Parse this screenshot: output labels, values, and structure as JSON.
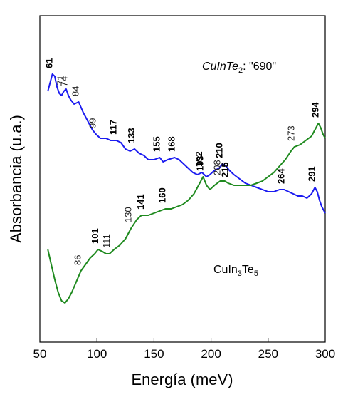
{
  "chart_data": {
    "type": "line",
    "xlabel": "Energía (meV)",
    "ylabel": "Absorbancia (u.a.)",
    "xlim": [
      50,
      300
    ],
    "x_ticks": [
      "50",
      "100",
      "150",
      "200",
      "250",
      "300"
    ],
    "y_ticks": false,
    "grid": false,
    "series": [
      {
        "name": "CuInTe₂: \"690\"",
        "label_parts": {
          "pre": "CuInTe",
          "sub": "2",
          "post": ": \"690\""
        },
        "color": "#1c1cf0",
        "peaks": [
          {
            "x": 61,
            "label": "61",
            "bold": true
          },
          {
            "x": 71,
            "label": "71",
            "bold": false
          },
          {
            "x": 74,
            "label": "74",
            "bold": false
          },
          {
            "x": 84,
            "label": "84",
            "bold": false
          },
          {
            "x": 99,
            "label": "99",
            "bold": false
          },
          {
            "x": 117,
            "label": "117",
            "bold": true
          },
          {
            "x": 133,
            "label": "133",
            "bold": true
          },
          {
            "x": 155,
            "label": "155",
            "bold": true
          },
          {
            "x": 168,
            "label": "168",
            "bold": true
          },
          {
            "x": 192,
            "label": "192",
            "bold": true
          },
          {
            "x": 210,
            "label": "210",
            "bold": true
          },
          {
            "x": 264,
            "label": "264",
            "bold": true
          },
          {
            "x": 291,
            "label": "291",
            "bold": true
          }
        ],
        "x": [
          57,
          59,
          61,
          63,
          65,
          67,
          69,
          71,
          73,
          75,
          77,
          80,
          84,
          88,
          92,
          96,
          99,
          103,
          108,
          112,
          117,
          121,
          125,
          129,
          133,
          137,
          141,
          145,
          150,
          155,
          158,
          162,
          168,
          172,
          176,
          180,
          184,
          188,
          192,
          196,
          199,
          203,
          207,
          210,
          213,
          216,
          220,
          225,
          230,
          235,
          240,
          245,
          250,
          255,
          260,
          264,
          268,
          272,
          276,
          280,
          284,
          288,
          291,
          293,
          295,
          297,
          300
        ],
        "y": [
          84,
          88,
          92,
          91,
          86,
          83,
          82,
          84,
          85,
          82,
          80,
          78,
          79,
          74,
          70,
          66,
          64,
          62,
          62,
          61,
          61,
          60,
          57,
          56,
          57,
          55,
          54,
          52,
          52,
          53,
          51,
          52,
          53,
          52,
          50,
          48,
          46,
          45,
          46,
          44,
          45,
          47,
          48,
          50,
          49,
          47,
          45,
          43,
          41,
          40,
          39,
          38,
          37,
          37,
          38,
          38,
          37,
          36,
          35,
          35,
          34,
          36,
          39,
          37,
          33,
          30,
          27
        ]
      },
      {
        "name": "CuIn₃Te₅",
        "label_parts": {
          "pre": "CuIn",
          "sub": "3",
          "post": "Te",
          "sub2": "5"
        },
        "color": "#1f8a1f",
        "peaks": [
          {
            "x": 86,
            "label": "86",
            "bold": false
          },
          {
            "x": 101,
            "label": "101",
            "bold": true
          },
          {
            "x": 111,
            "label": "111",
            "bold": false
          },
          {
            "x": 130,
            "label": "130",
            "bold": false
          },
          {
            "x": 141,
            "label": "141",
            "bold": true
          },
          {
            "x": 160,
            "label": "160",
            "bold": true
          },
          {
            "x": 193,
            "label": "193",
            "bold": true
          },
          {
            "x": 208,
            "label": "208",
            "bold": false
          },
          {
            "x": 215,
            "label": "215",
            "bold": true
          },
          {
            "x": 273,
            "label": "273",
            "bold": false
          },
          {
            "x": 294,
            "label": "294",
            "bold": true
          }
        ],
        "x": [
          57,
          60,
          63,
          66,
          69,
          72,
          75,
          78,
          82,
          86,
          90,
          94,
          98,
          101,
          105,
          108,
          111,
          115,
          120,
          125,
          130,
          135,
          139,
          141,
          145,
          150,
          155,
          160,
          165,
          170,
          175,
          180,
          185,
          188,
          191,
          193,
          196,
          199,
          203,
          208,
          212,
          215,
          220,
          225,
          230,
          235,
          240,
          245,
          250,
          255,
          260,
          265,
          270,
          273,
          278,
          283,
          288,
          292,
          294,
          296,
          298,
          300
        ],
        "y": [
          10,
          3,
          -4,
          -10,
          -14,
          -15,
          -13,
          -10,
          -5,
          0,
          3,
          6,
          8,
          10,
          9,
          8,
          8,
          10,
          12,
          15,
          20,
          24,
          26,
          26,
          26,
          27,
          28,
          29,
          29,
          30,
          31,
          33,
          36,
          39,
          42,
          44,
          40,
          38,
          40,
          42,
          42,
          41,
          40,
          40,
          40,
          40,
          41,
          42,
          44,
          46,
          49,
          52,
          56,
          58,
          59,
          61,
          63,
          67,
          69,
          67,
          64,
          62
        ]
      }
    ]
  }
}
